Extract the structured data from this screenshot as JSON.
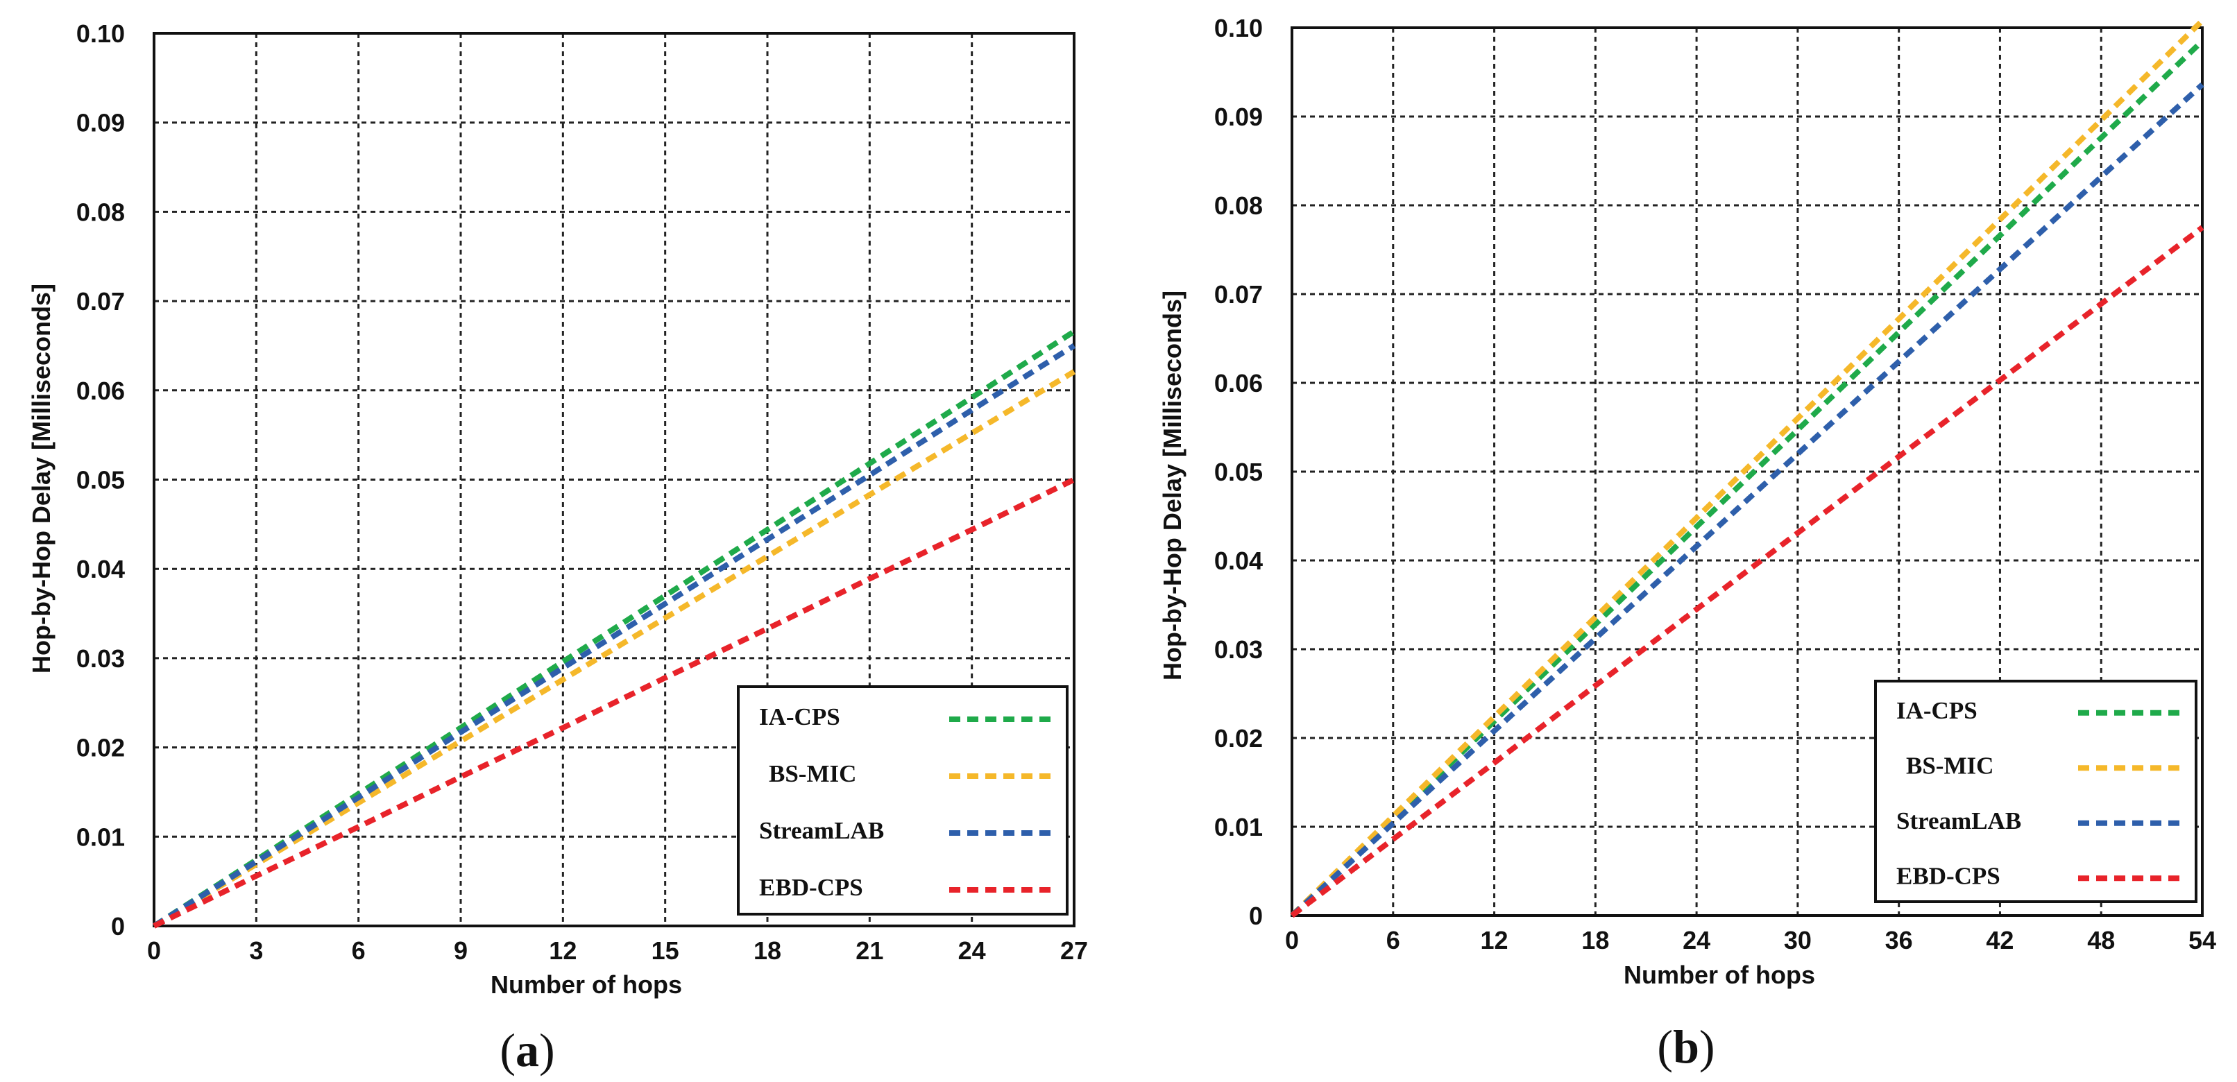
{
  "chart_data": [
    {
      "type": "line",
      "panel_label": "a",
      "xlabel": "Number of hops",
      "ylabel": "Hop-by-Hop Delay [Milliseconds]",
      "xlim": [
        0,
        27
      ],
      "ylim": [
        0,
        0.1
      ],
      "x_ticks": [
        0,
        3,
        6,
        9,
        12,
        15,
        18,
        21,
        24,
        27
      ],
      "y_ticks": [
        0,
        0.01,
        0.02,
        0.03,
        0.04,
        0.05,
        0.06,
        0.07,
        0.08,
        0.09,
        0.1
      ],
      "y_tick_labels": [
        "0",
        "0.01",
        "0.02",
        "0.03",
        "0.04",
        "0.05",
        "0.06",
        "0.07",
        "0.08",
        "0.09",
        "0.10"
      ],
      "grid": true,
      "legend_position": "bottom-right",
      "series": [
        {
          "name": "IA-CPS",
          "color": "#1faa4a",
          "x": [
            0,
            3,
            6,
            9,
            12,
            15,
            18,
            21,
            24,
            27
          ],
          "y": [
            0,
            0.0074,
            0.0148,
            0.0222,
            0.0296,
            0.037,
            0.0444,
            0.0518,
            0.0592,
            0.0666
          ]
        },
        {
          "name": "BS-MIC",
          "color": "#f5b82a",
          "x": [
            0,
            3,
            6,
            9,
            12,
            15,
            18,
            21,
            24,
            27
          ],
          "y": [
            0,
            0.0069,
            0.0138,
            0.0207,
            0.0276,
            0.0345,
            0.0414,
            0.0483,
            0.0552,
            0.0621
          ]
        },
        {
          "name": "StreamLAB",
          "color": "#2e5fab",
          "x": [
            0,
            3,
            6,
            9,
            12,
            15,
            18,
            21,
            24,
            27
          ],
          "y": [
            0,
            0.0072,
            0.0144,
            0.0217,
            0.0289,
            0.0361,
            0.0433,
            0.0505,
            0.0578,
            0.065
          ]
        },
        {
          "name": "EBD-CPS",
          "color": "#e8232a",
          "x": [
            0,
            3,
            6,
            9,
            12,
            15,
            18,
            21,
            24,
            27
          ],
          "y": [
            0,
            0.0056,
            0.0111,
            0.0167,
            0.0222,
            0.0278,
            0.0333,
            0.0389,
            0.0444,
            0.05
          ]
        }
      ]
    },
    {
      "type": "line",
      "panel_label": "b",
      "xlabel": "Number of hops",
      "ylabel": "Hop-by-Hop Delay [Milliseconds]",
      "xlim": [
        0,
        54
      ],
      "ylim": [
        0,
        0.1
      ],
      "x_ticks": [
        0,
        6,
        12,
        18,
        24,
        30,
        36,
        42,
        48,
        54
      ],
      "y_ticks": [
        0,
        0.01,
        0.02,
        0.03,
        0.04,
        0.05,
        0.06,
        0.07,
        0.08,
        0.09,
        0.1
      ],
      "y_tick_labels": [
        "0",
        "0.01",
        "0.02",
        "0.03",
        "0.04",
        "0.05",
        "0.06",
        "0.07",
        "0.08",
        "0.09",
        "0.10"
      ],
      "grid": true,
      "legend_position": "bottom-right",
      "series": [
        {
          "name": "IA-CPS",
          "color": "#1faa4a",
          "x": [
            0,
            6,
            12,
            18,
            24,
            30,
            36,
            42,
            48,
            54
          ],
          "y": [
            0,
            0.0109,
            0.0219,
            0.0328,
            0.0438,
            0.0547,
            0.0657,
            0.0766,
            0.0876,
            0.0985
          ]
        },
        {
          "name": "BS-MIC",
          "color": "#f5b82a",
          "x": [
            0,
            6,
            12,
            18,
            24,
            30,
            36,
            42,
            48,
            54
          ],
          "y": [
            0,
            0.0112,
            0.0224,
            0.0336,
            0.0448,
            0.056,
            0.0672,
            0.0784,
            0.0896,
            0.1008
          ]
        },
        {
          "name": "StreamLAB",
          "color": "#2e5fab",
          "x": [
            0,
            6,
            12,
            18,
            24,
            30,
            36,
            42,
            48,
            54
          ],
          "y": [
            0,
            0.0104,
            0.0208,
            0.0312,
            0.0416,
            0.052,
            0.0624,
            0.0728,
            0.0832,
            0.0936
          ]
        },
        {
          "name": "EBD-CPS",
          "color": "#e8232a",
          "x": [
            0,
            6,
            12,
            18,
            24,
            30,
            36,
            42,
            48,
            54
          ],
          "y": [
            0,
            0.0086,
            0.0172,
            0.0259,
            0.0345,
            0.0431,
            0.0517,
            0.0603,
            0.0689,
            0.0775
          ]
        }
      ]
    }
  ]
}
